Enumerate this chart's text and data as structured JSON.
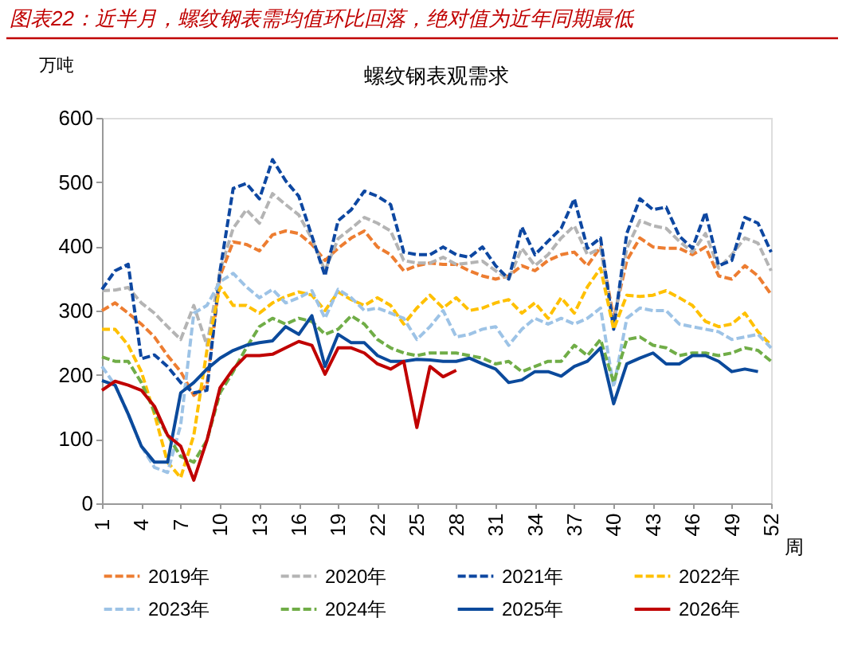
{
  "chart_data": {
    "type": "line",
    "title": "图表22：近半月，螺纹钢表需均值环比回落，绝对值为近年同期最低",
    "subtitle": "螺纹钢表观需求",
    "ylabel": "万吨",
    "xlabel": "周",
    "x": [
      1,
      2,
      3,
      4,
      5,
      6,
      7,
      8,
      9,
      10,
      11,
      12,
      13,
      14,
      15,
      16,
      17,
      18,
      19,
      20,
      21,
      22,
      23,
      24,
      25,
      26,
      27,
      28,
      29,
      30,
      31,
      32,
      33,
      34,
      35,
      36,
      37,
      38,
      39,
      40,
      41,
      42,
      43,
      44,
      45,
      46,
      47,
      48,
      49,
      50,
      51,
      52
    ],
    "xlim": [
      1,
      52
    ],
    "xticks": [
      1,
      4,
      7,
      10,
      13,
      16,
      19,
      22,
      25,
      28,
      31,
      34,
      37,
      40,
      43,
      46,
      49,
      52
    ],
    "ylim": [
      0,
      600
    ],
    "yticks": [
      0,
      100,
      200,
      300,
      400,
      500,
      600
    ],
    "grid": false,
    "legend": "bottom",
    "marker": "none",
    "series": [
      {
        "name": "2019年",
        "color": "#ed7d31",
        "line_style": "dashed",
        "values": [
          300,
          312,
          296,
          279,
          259,
          230,
          205,
          168,
          184,
          354,
          407,
          403,
          393,
          418,
          424,
          420,
          403,
          378,
          397,
          413,
          424,
          399,
          387,
          362,
          370,
          374,
          372,
          372,
          362,
          354,
          349,
          354,
          370,
          362,
          378,
          387,
          391,
          370,
          399,
          288,
          378,
          413,
          399,
          397,
          397,
          387,
          399,
          354,
          349,
          370,
          354,
          325
        ]
      },
      {
        "name": "2020年",
        "color": "#b4b4b4",
        "line_style": "dashed",
        "values": [
          331,
          332,
          336,
          312,
          296,
          275,
          255,
          308,
          246,
          362,
          428,
          457,
          436,
          482,
          465,
          449,
          412,
          362,
          412,
          428,
          445,
          436,
          424,
          378,
          374,
          374,
          383,
          372,
          374,
          377,
          362,
          349,
          397,
          370,
          387,
          413,
          432,
          387,
          397,
          279,
          397,
          440,
          432,
          428,
          408,
          391,
          420,
          366,
          387,
          413,
          405,
          362
        ]
      },
      {
        "name": "2021年",
        "color": "#0d47a1",
        "line_style": "dashed",
        "values": [
          333,
          362,
          372,
          225,
          231,
          213,
          188,
          172,
          176,
          362,
          490,
          498,
          474,
          535,
          502,
          478,
          416,
          354,
          440,
          457,
          486,
          478,
          465,
          391,
          387,
          387,
          399,
          387,
          383,
          399,
          370,
          349,
          430,
          387,
          408,
          428,
          474,
          397,
          413,
          271,
          420,
          474,
          457,
          461,
          416,
          397,
          453,
          370,
          378,
          445,
          436,
          391
        ]
      },
      {
        "name": "2022年",
        "color": "#ffc000",
        "line_style": "dashed",
        "values": [
          271,
          271,
          246,
          205,
          139,
          64,
          40,
          106,
          238,
          337,
          308,
          308,
          296,
          312,
          322,
          329,
          324,
          300,
          329,
          317,
          308,
          320,
          308,
          279,
          304,
          324,
          304,
          320,
          300,
          304,
          312,
          317,
          296,
          312,
          288,
          320,
          296,
          337,
          366,
          271,
          324,
          322,
          324,
          331,
          320,
          308,
          283,
          275,
          279,
          296,
          267,
          246
        ]
      },
      {
        "name": "2023年",
        "color": "#9dc3e6",
        "line_style": "dashed",
        "values": [
          213,
          184,
          139,
          89,
          56,
          48,
          122,
          296,
          308,
          345,
          358,
          337,
          320,
          333,
          312,
          320,
          331,
          288,
          333,
          320,
          300,
          304,
          296,
          288,
          255,
          275,
          300,
          259,
          263,
          271,
          275,
          246,
          271,
          288,
          279,
          288,
          279,
          288,
          304,
          181,
          288,
          304,
          300,
          300,
          279,
          275,
          271,
          267,
          255,
          259,
          263,
          242
        ]
      },
      {
        "name": "2024年",
        "color": "#70ad47",
        "line_style": "dashed",
        "values": [
          228,
          221,
          221,
          188,
          143,
          106,
          73,
          64,
          98,
          172,
          205,
          242,
          275,
          288,
          279,
          288,
          283,
          263,
          271,
          292,
          279,
          255,
          242,
          234,
          230,
          234,
          234,
          234,
          230,
          226,
          217,
          221,
          205,
          213,
          221,
          221,
          246,
          230,
          255,
          188,
          255,
          259,
          246,
          242,
          230,
          234,
          234,
          230,
          234,
          242,
          238,
          221
        ]
      },
      {
        "name": "2025年",
        "color": "#0b4a9c",
        "line_style": "solid",
        "values": [
          191,
          184,
          139,
          89,
          64,
          64,
          172,
          188,
          209,
          226,
          238,
          246,
          250,
          253,
          275,
          263,
          292,
          213,
          263,
          250,
          250,
          230,
          221,
          221,
          224,
          223,
          221,
          221,
          226,
          217,
          209,
          188,
          192,
          205,
          205,
          198,
          213,
          221,
          242,
          155,
          217,
          226,
          234,
          217,
          217,
          230,
          230,
          221,
          205,
          209,
          205,
          null
        ]
      },
      {
        "name": "2026年",
        "color": "#c00000",
        "line_style": "solid",
        "values": [
          176,
          190,
          184,
          176,
          151,
          106,
          89,
          36,
          98,
          180,
          209,
          230,
          230,
          232,
          242,
          252,
          246,
          201,
          242,
          242,
          234,
          217,
          209,
          221,
          118,
          213,
          197,
          207,
          null,
          null,
          null,
          null,
          null,
          null,
          null,
          null,
          null,
          null,
          null,
          null,
          null,
          null,
          null,
          null,
          null,
          null,
          null,
          null,
          null,
          null,
          null,
          null
        ]
      }
    ]
  }
}
